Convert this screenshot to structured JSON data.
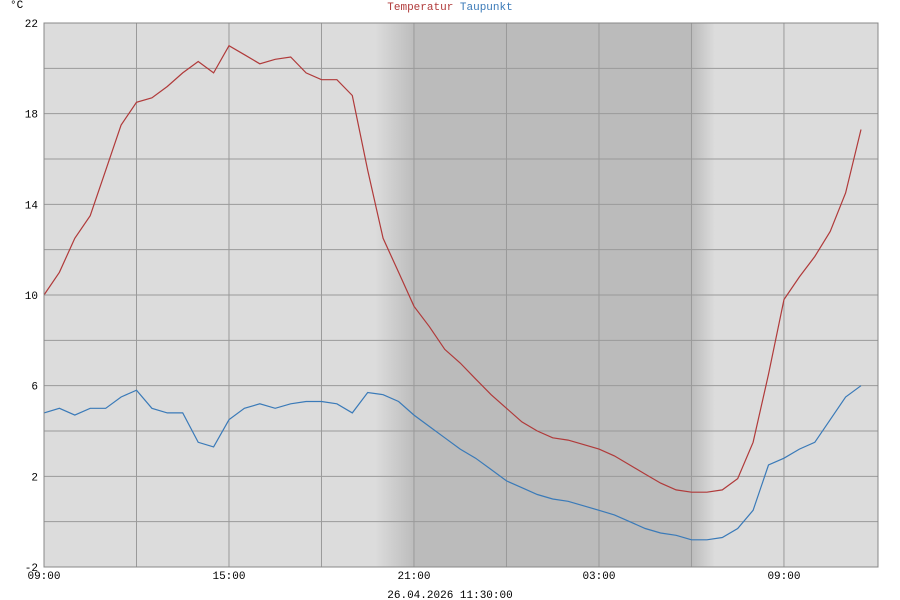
{
  "chart_data": {
    "type": "line",
    "y_label": "°C",
    "timestamp": "26.04.2026 11:30:00",
    "xlim": [
      0,
      27.05
    ],
    "xticks": [
      {
        "value": 0,
        "label": "09:00"
      },
      {
        "value": 6,
        "label": "15:00"
      },
      {
        "value": 12,
        "label": "21:00"
      },
      {
        "value": 18,
        "label": "03:00"
      },
      {
        "value": 24,
        "label": "09:00"
      }
    ],
    "ylim": [
      -2,
      22
    ],
    "yticks": [
      -2,
      2,
      6,
      10,
      14,
      18,
      22
    ],
    "grid": true,
    "x": [
      0,
      0.5,
      1,
      1.5,
      2,
      2.5,
      3,
      3.5,
      4,
      4.5,
      5,
      5.5,
      6,
      6.5,
      7,
      7.5,
      8,
      8.5,
      9,
      9.5,
      10,
      10.5,
      11,
      11.5,
      12,
      12.5,
      13,
      13.5,
      14,
      14.5,
      15,
      15.5,
      16,
      16.5,
      17,
      17.5,
      18,
      18.5,
      19,
      19.5,
      20,
      20.5,
      21,
      21.5,
      22,
      22.5,
      23,
      23.5,
      24,
      24.5,
      25,
      25.5,
      26,
      26.5
    ],
    "series": [
      {
        "name": "Temperatur",
        "color": "#b03a3a",
        "values": [
          10.0,
          11.0,
          12.5,
          13.5,
          15.5,
          17.5,
          18.5,
          18.7,
          19.2,
          19.8,
          20.3,
          19.8,
          21.0,
          20.6,
          20.2,
          20.4,
          20.5,
          19.8,
          19.5,
          19.5,
          18.8,
          15.5,
          12.5,
          11.0,
          9.5,
          8.6,
          7.6,
          7.0,
          6.3,
          5.6,
          5.0,
          4.4,
          4.0,
          3.7,
          3.6,
          3.4,
          3.2,
          2.9,
          2.5,
          2.1,
          1.7,
          1.4,
          1.3,
          1.3,
          1.4,
          1.9,
          3.5,
          6.5,
          9.8,
          10.8,
          11.7,
          12.8,
          14.5,
          17.3
        ]
      },
      {
        "name": "Taupunkt",
        "color": "#3a7ab8",
        "values": [
          4.8,
          5.0,
          4.7,
          5.0,
          5.0,
          5.5,
          5.8,
          5.0,
          4.8,
          4.8,
          3.5,
          3.3,
          4.5,
          5.0,
          5.2,
          5.0,
          5.2,
          5.3,
          5.3,
          5.2,
          4.8,
          5.7,
          5.6,
          5.3,
          4.7,
          4.2,
          3.7,
          3.2,
          2.8,
          2.3,
          1.8,
          1.5,
          1.2,
          1.0,
          0.9,
          0.7,
          0.5,
          0.3,
          0.0,
          -0.3,
          -0.5,
          -0.6,
          -0.8,
          -0.8,
          -0.7,
          -0.3,
          0.5,
          2.5,
          2.8,
          3.2,
          3.5,
          4.5,
          5.5,
          6.0
        ]
      }
    ]
  }
}
